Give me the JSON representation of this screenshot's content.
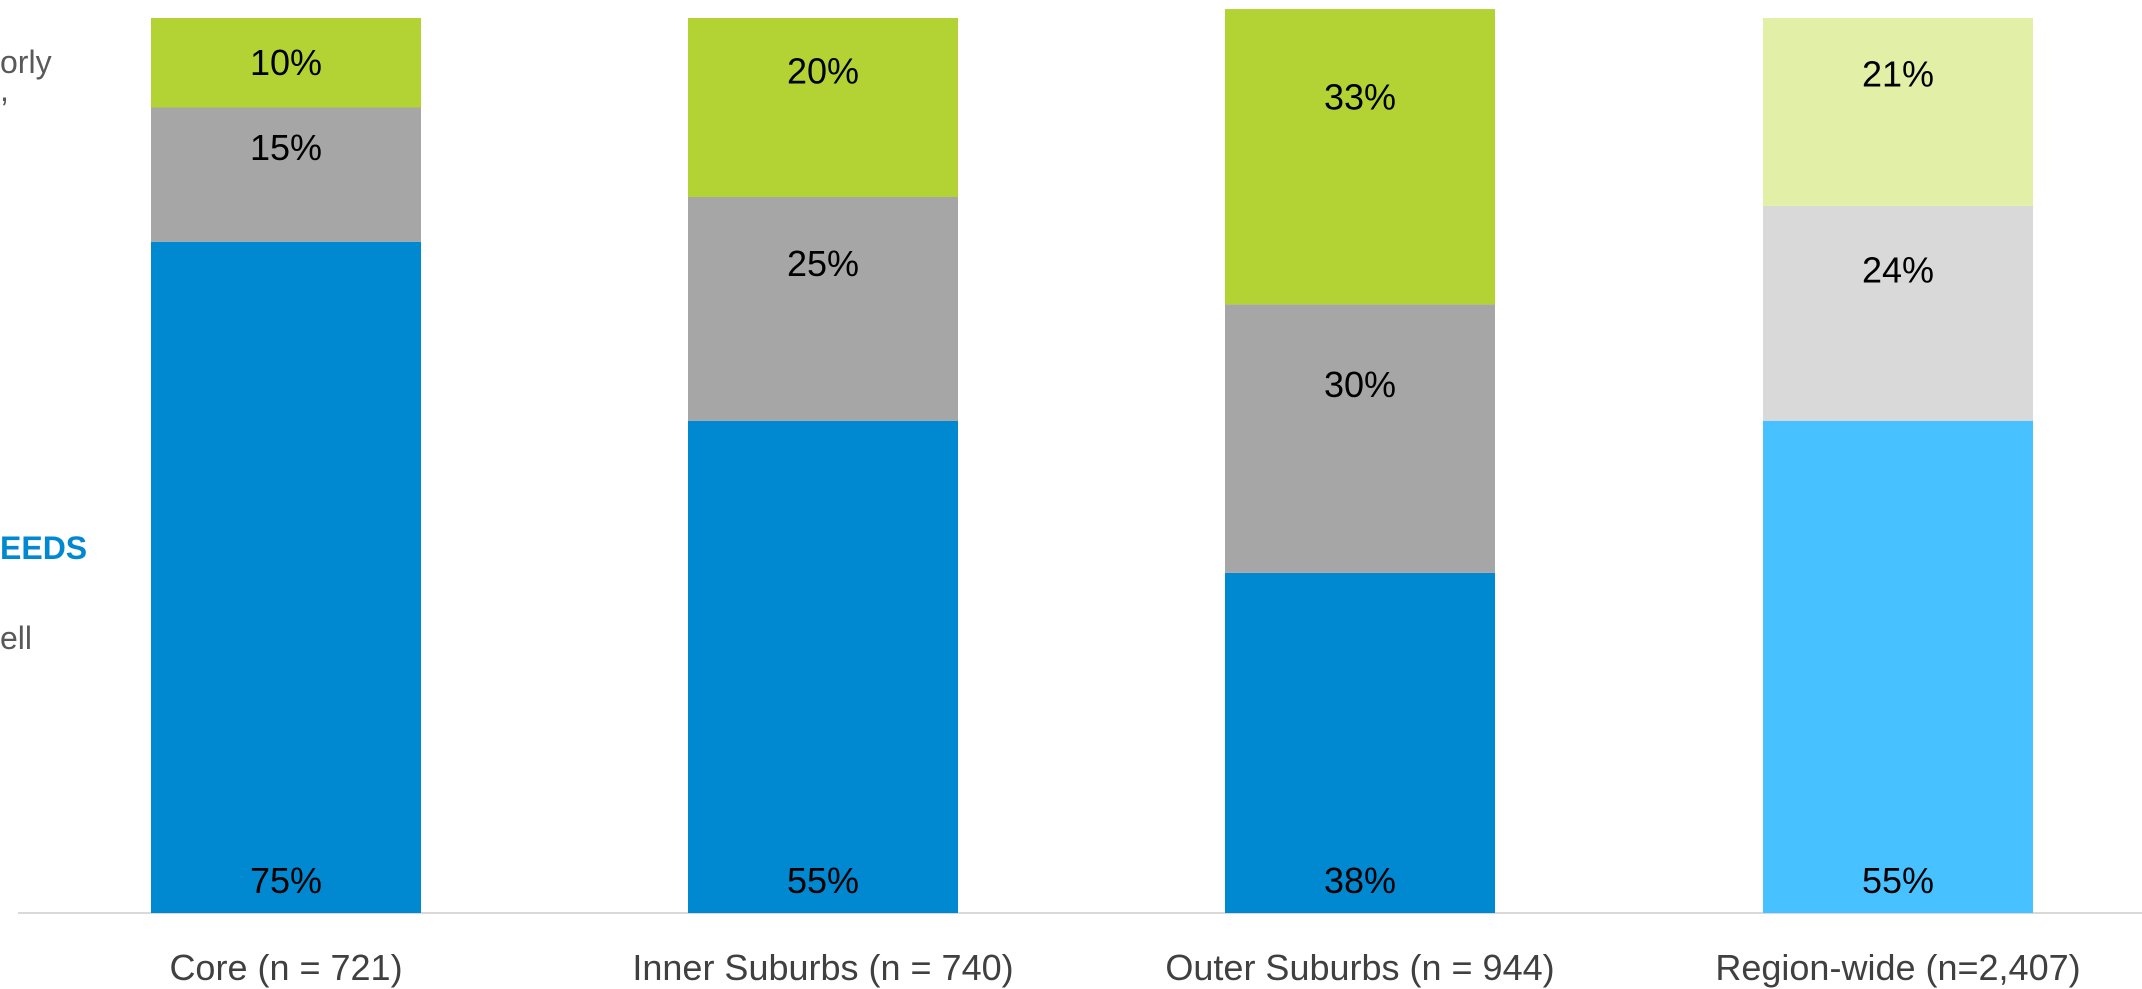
{
  "side_labels": {
    "top": "orly",
    "top_tail": ",",
    "middle": "EEDS",
    "bottom": "ell"
  },
  "chart_data": {
    "type": "bar",
    "stacked": true,
    "title": "",
    "xlabel": "",
    "ylabel": "",
    "ylim": [
      0,
      100
    ],
    "grid": false,
    "categories": [
      "Core (n = 721)",
      "Inner Suburbs (n = 740)",
      "Outer Suburbs (n = 944)",
      "Region-wide (n=2,407)"
    ],
    "series": [
      {
        "values": [
          75,
          55,
          38,
          55
        ],
        "labels": [
          "75%",
          "55%",
          "38%",
          "55%"
        ],
        "colors": [
          "#0088D1",
          "#0088D1",
          "#0088D1",
          "#47C1FF"
        ]
      },
      {
        "values": [
          15,
          25,
          30,
          24
        ],
        "labels": [
          "15%",
          "25%",
          "30%",
          "24%"
        ],
        "colors": [
          "#A6A6A6",
          "#A6A6A6",
          "#A6A6A6",
          "#D9D9D9"
        ]
      },
      {
        "values": [
          10,
          20,
          33,
          21
        ],
        "labels": [
          "10%",
          "20%",
          "33%",
          "21%"
        ],
        "colors": [
          "#B3D335",
          "#B3D335",
          "#B3D335",
          "#E2EFA7"
        ]
      }
    ]
  }
}
